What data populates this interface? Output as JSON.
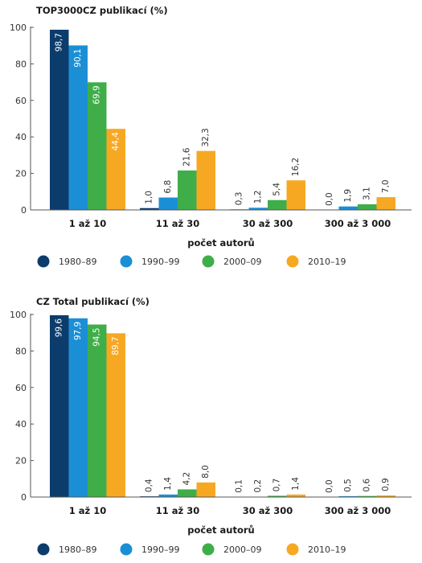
{
  "chart_data": [
    {
      "type": "bar",
      "title": "TOP3000CZ publikací (%)",
      "xlabel": "počet autorů",
      "ylabel": "",
      "ylim": [
        0,
        100
      ],
      "yticks": [
        0,
        20,
        40,
        60,
        80,
        100
      ],
      "grid": false,
      "legend": "bottom",
      "categories": [
        "1 až 10",
        "11 až 30",
        "30 až 300",
        "300 až 3 000"
      ],
      "series": [
        {
          "name": "1980–89",
          "color": "#0b3c6b",
          "values": [
            98.7,
            1.0,
            0.3,
            0.0
          ],
          "labels": [
            "98,7",
            "1,0",
            "0,3",
            "0,0"
          ]
        },
        {
          "name": "1990–99",
          "color": "#1b8fd6",
          "values": [
            90.1,
            6.8,
            1.2,
            1.9
          ],
          "labels": [
            "90,1",
            "6,8",
            "1,2",
            "1,9"
          ]
        },
        {
          "name": "2000–09",
          "color": "#3fae49",
          "values": [
            69.9,
            21.6,
            5.4,
            3.1
          ],
          "labels": [
            "69,9",
            "21,6",
            "5,4",
            "3,1"
          ]
        },
        {
          "name": "2010–19",
          "color": "#f7a823",
          "values": [
            44.4,
            32.3,
            16.2,
            7.0
          ],
          "labels": [
            "44,4",
            "32,3",
            "16,2",
            "7,0"
          ]
        }
      ]
    },
    {
      "type": "bar",
      "title": "CZ Total publikací (%)",
      "xlabel": "počet autorů",
      "ylabel": "",
      "ylim": [
        0,
        100
      ],
      "yticks": [
        0,
        20,
        40,
        60,
        80,
        100
      ],
      "grid": false,
      "legend": "bottom",
      "categories": [
        "1 až 10",
        "11 až 30",
        "30 až 300",
        "300 až 3 000"
      ],
      "series": [
        {
          "name": "1980–89",
          "color": "#0b3c6b",
          "values": [
            99.6,
            0.4,
            0.1,
            0.0
          ],
          "labels": [
            "99,6",
            "0,4",
            "0,1",
            "0,0"
          ]
        },
        {
          "name": "1990–99",
          "color": "#1b8fd6",
          "values": [
            97.9,
            1.4,
            0.2,
            0.5
          ],
          "labels": [
            "97,9",
            "1,4",
            "0,2",
            "0,5"
          ]
        },
        {
          "name": "2000–09",
          "color": "#3fae49",
          "values": [
            94.5,
            4.2,
            0.7,
            0.6
          ],
          "labels": [
            "94,5",
            "4,2",
            "0,7",
            "0,6"
          ]
        },
        {
          "name": "2010–19",
          "color": "#f7a823",
          "values": [
            89.7,
            8.0,
            1.4,
            0.9
          ],
          "labels": [
            "89,7",
            "8,0",
            "1,4",
            "0,9"
          ]
        }
      ]
    }
  ]
}
